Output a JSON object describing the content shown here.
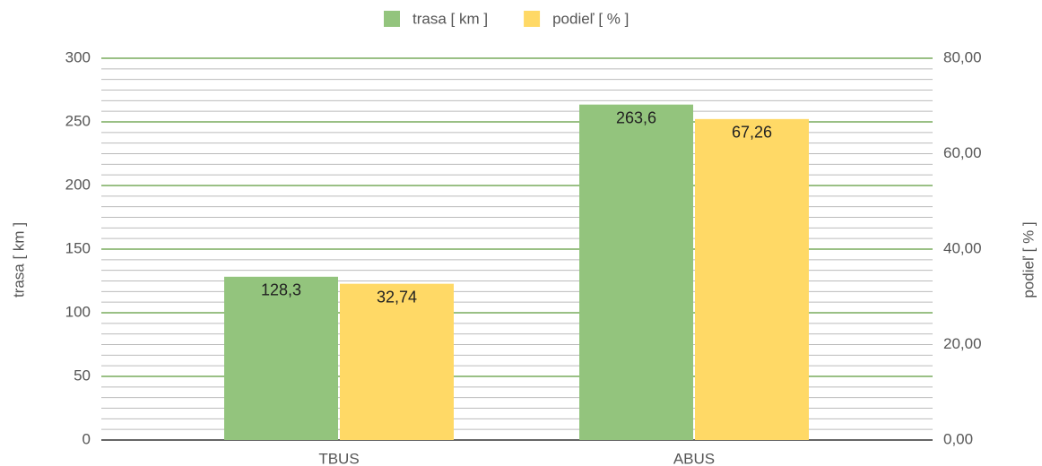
{
  "chart_data": {
    "type": "bar",
    "categories": [
      "TBUS",
      "ABUS"
    ],
    "series": [
      {
        "name": "trasa [ km ]",
        "color": "#93c47d",
        "values": [
          128.3,
          263.6
        ],
        "value_labels": [
          "128,3",
          "263,6"
        ]
      },
      {
        "name": "podieľ [ % ]",
        "color": "#ffd966",
        "values": [
          32.74,
          67.26
        ],
        "value_labels": [
          "32,74",
          "67,26"
        ],
        "axis": "y2"
      }
    ],
    "ylabel": "trasa [ km ]",
    "y2label": "podieľ [ % ]",
    "ylim": [
      0,
      300
    ],
    "yticks": [
      0,
      50,
      100,
      150,
      200,
      250,
      300
    ],
    "y2lim": [
      0,
      80
    ],
    "y2ticks": [
      {
        "value": 0,
        "label": "0,00"
      },
      {
        "value": 20,
        "label": "20,00"
      },
      {
        "value": 40,
        "label": "40,00"
      },
      {
        "value": 60,
        "label": "60,00"
      },
      {
        "value": 80,
        "label": "80,00"
      }
    ],
    "grid": true,
    "legend": "top"
  }
}
